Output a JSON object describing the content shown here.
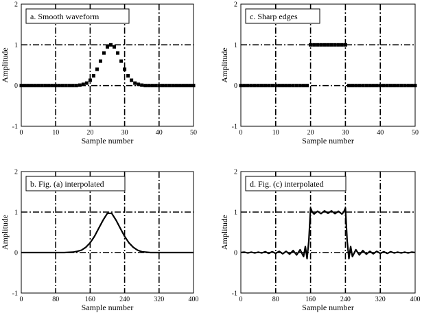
{
  "chart_data": [
    {
      "type": "scatter",
      "title": "a.  Smooth waveform",
      "xlabel": "Sample number",
      "ylabel": "Amplitude",
      "xlim": [
        0,
        50
      ],
      "ylim": [
        -1,
        2
      ],
      "xticks": [
        "0",
        "10",
        "20",
        "30",
        "40",
        "50"
      ],
      "yticks": [
        "-1",
        "0",
        "1",
        "2"
      ],
      "grid": true,
      "series": [
        {
          "x": [
            0,
            1,
            2,
            3,
            4,
            5,
            6,
            7,
            8,
            9,
            10,
            11,
            12,
            13,
            14,
            15,
            16,
            17,
            18,
            19,
            20,
            21,
            22,
            23,
            24,
            25,
            26,
            27,
            28,
            29,
            30,
            31,
            32,
            33,
            34,
            35,
            36,
            37,
            38,
            39,
            40,
            41,
            42,
            43,
            44,
            45,
            46,
            47,
            48,
            49,
            50
          ],
          "y": [
            0,
            0,
            0,
            0,
            0,
            0,
            0,
            0,
            0,
            0,
            0,
            0,
            0,
            0,
            0,
            0,
            0,
            0.01,
            0.03,
            0.06,
            0.13,
            0.24,
            0.4,
            0.6,
            0.8,
            0.95,
            1.0,
            0.95,
            0.8,
            0.6,
            0.4,
            0.24,
            0.13,
            0.06,
            0.03,
            0.01,
            0,
            0,
            0,
            0,
            0,
            0,
            0,
            0,
            0,
            0,
            0,
            0,
            0,
            0,
            0
          ]
        }
      ]
    },
    {
      "type": "scatter",
      "title": "c.  Sharp edges",
      "xlabel": "Sample number",
      "ylabel": "Amplitude",
      "xlim": [
        0,
        50
      ],
      "ylim": [
        -1,
        2
      ],
      "xticks": [
        "0",
        "10",
        "20",
        "30",
        "40",
        "50"
      ],
      "yticks": [
        "-1",
        "0",
        "1",
        "2"
      ],
      "grid": true,
      "series": [
        {
          "x": [
            0,
            1,
            2,
            3,
            4,
            5,
            6,
            7,
            8,
            9,
            10,
            11,
            12,
            13,
            14,
            15,
            16,
            17,
            18,
            19,
            20,
            21,
            22,
            23,
            24,
            25,
            26,
            27,
            28,
            29,
            30,
            31,
            32,
            33,
            34,
            35,
            36,
            37,
            38,
            39,
            40,
            41,
            42,
            43,
            44,
            45,
            46,
            47,
            48,
            49,
            50
          ],
          "y": [
            0,
            0,
            0,
            0,
            0,
            0,
            0,
            0,
            0,
            0,
            0,
            0,
            0,
            0,
            0,
            0,
            0,
            0,
            0,
            0,
            1,
            1,
            1,
            1,
            1,
            1,
            1,
            1,
            1,
            1,
            1,
            0,
            0,
            0,
            0,
            0,
            0,
            0,
            0,
            0,
            0,
            0,
            0,
            0,
            0,
            0,
            0,
            0,
            0,
            0,
            0
          ]
        }
      ]
    },
    {
      "type": "line",
      "title": "b.  Fig. (a) interpolated",
      "xlabel": "Sample number",
      "ylabel": "Amplitude",
      "xlim": [
        0,
        400
      ],
      "ylim": [
        -1,
        2
      ],
      "xticks": [
        "0",
        "80",
        "160",
        "240",
        "320",
        "400"
      ],
      "yticks": [
        "-1",
        "0",
        "1",
        "2"
      ],
      "grid": true,
      "series": [
        {
          "x": [
            0,
            100,
            120,
            130,
            140,
            150,
            160,
            170,
            180,
            190,
            200,
            210,
            220,
            230,
            240,
            250,
            260,
            270,
            280,
            300,
            400
          ],
          "y": [
            0,
            0,
            0.01,
            0.03,
            0.06,
            0.13,
            0.24,
            0.4,
            0.6,
            0.8,
            0.97,
            0.97,
            0.8,
            0.6,
            0.4,
            0.24,
            0.13,
            0.06,
            0.02,
            0,
            0
          ]
        }
      ]
    },
    {
      "type": "line",
      "title": "d.  Fig. (c) interpolated",
      "xlabel": "Sample number",
      "ylabel": "Amplitude",
      "xlim": [
        0,
        400
      ],
      "ylim": [
        -1,
        2
      ],
      "xticks": [
        "0",
        "80",
        "160",
        "240",
        "320",
        "400"
      ],
      "yticks": [
        "-1",
        "0",
        "1",
        "2"
      ],
      "grid": true,
      "series": [
        {
          "x": [
            0,
            8,
            16,
            24,
            32,
            40,
            48,
            56,
            64,
            72,
            80,
            88,
            96,
            104,
            112,
            120,
            128,
            136,
            144,
            148,
            152,
            156,
            160,
            164,
            168,
            176,
            184,
            192,
            200,
            208,
            216,
            224,
            232,
            236,
            240,
            244,
            248,
            252,
            256,
            264,
            272,
            280,
            288,
            296,
            304,
            312,
            320,
            328,
            336,
            344,
            352,
            360,
            368,
            376,
            384,
            392,
            400
          ],
          "y": [
            0,
            0.01,
            -0.01,
            0.01,
            -0.01,
            0.01,
            -0.01,
            0.02,
            -0.02,
            0.02,
            -0.02,
            0.03,
            -0.03,
            0.03,
            -0.04,
            0.05,
            -0.06,
            0.07,
            -0.1,
            0.15,
            -0.15,
            0.3,
            1.1,
            1.0,
            0.95,
            1.02,
            0.96,
            1.03,
            0.97,
            1.03,
            0.96,
            1.02,
            0.95,
            1.0,
            1.1,
            0.3,
            -0.15,
            0.15,
            -0.1,
            0.07,
            -0.06,
            0.05,
            -0.04,
            0.03,
            -0.03,
            0.03,
            -0.02,
            0.02,
            -0.02,
            0.02,
            -0.01,
            0.01,
            -0.01,
            0.01,
            -0.01,
            0.01,
            0
          ]
        }
      ]
    }
  ]
}
